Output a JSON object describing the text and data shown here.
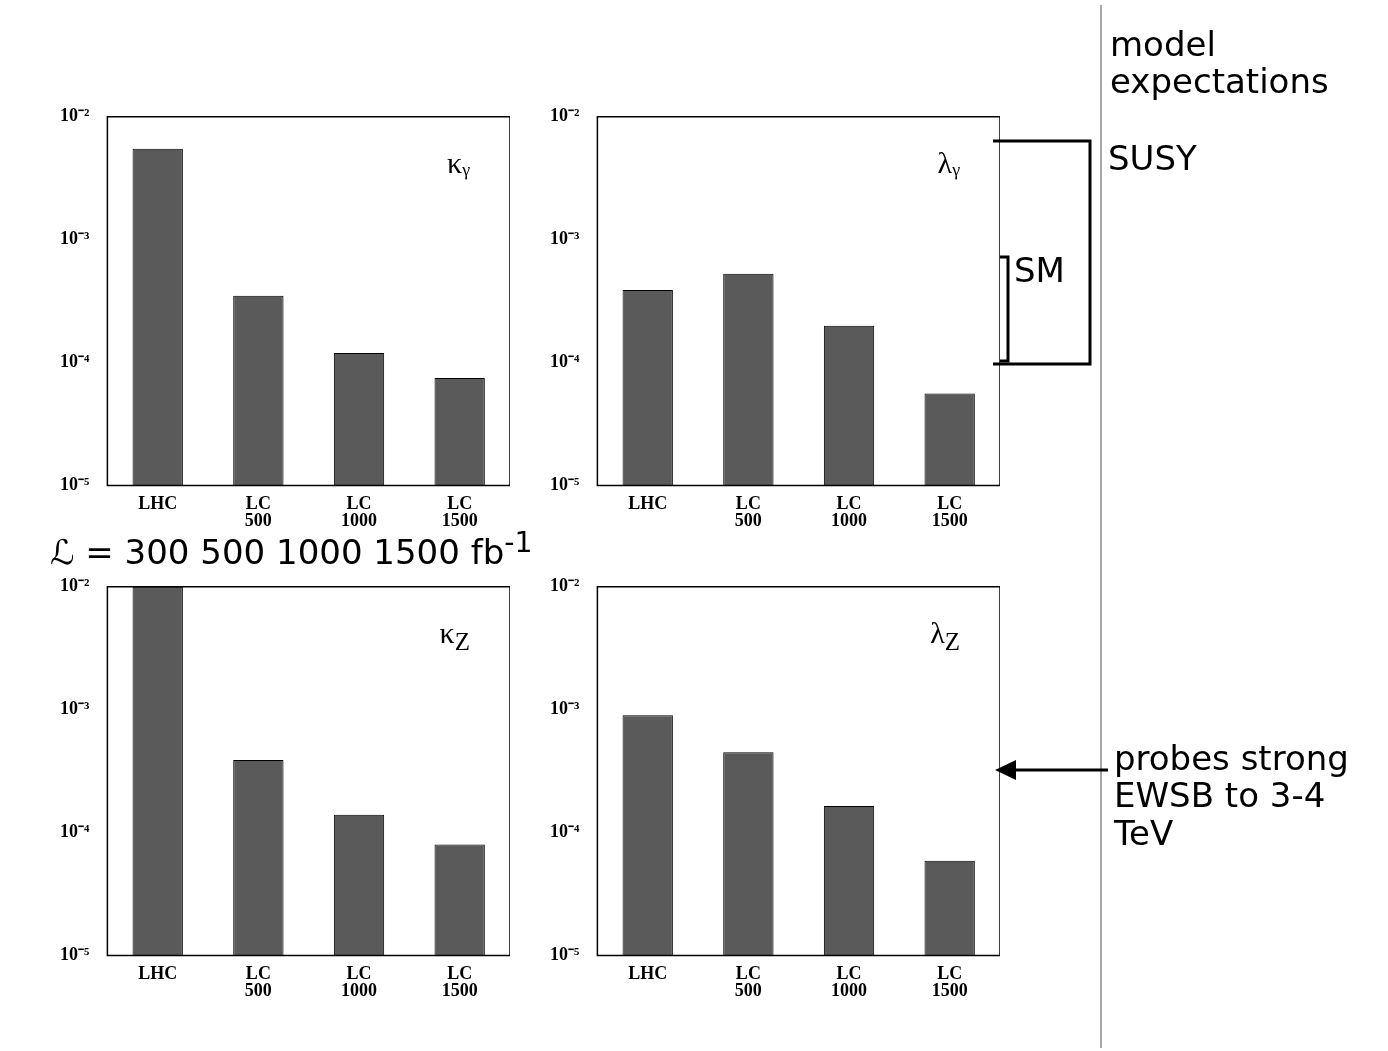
{
  "chart_data": [
    {
      "type": "bar",
      "categories": [
        "LHC",
        "LC 500",
        "LC 1000",
        "LC 1500"
      ],
      "values": [
        0.0055,
        0.00035,
        0.00012,
        7.5e-05
      ],
      "color": "#5a5a5a",
      "log": "y",
      "ylim": [
        1e-05,
        0.01
      ],
      "yticks": [
        {
          "value": 1e-05,
          "label": "10⁻⁵"
        },
        {
          "value": 0.0001,
          "label": "10⁻⁴"
        },
        {
          "value": 0.001,
          "label": "10⁻³"
        },
        {
          "value": 0.01,
          "label": "10⁻²"
        }
      ],
      "annotations": [
        "κᵧ",
        "ℒ =  300   500   1000  1500 fb$^{-1}$"
      ]
    },
    {
      "type": "bar",
      "categories": [
        "LHC",
        "LC 500",
        "LC 1000",
        "LC 1500"
      ],
      "values": [
        0.00039,
        0.00053,
        0.0002,
        5.6e-05
      ],
      "color": "#5a5a5a",
      "log": "y",
      "ylim": [
        1e-05,
        0.01
      ],
      "yticks": [
        {
          "value": 1e-05,
          "label": "10⁻⁵"
        },
        {
          "value": 0.0001,
          "label": "10⁻⁴"
        },
        {
          "value": 0.001,
          "label": "10⁻³"
        },
        {
          "value": 0.01,
          "label": "10⁻²"
        }
      ],
      "annotations": [
        "λᵧ",
        "model expectations",
        "SUSY",
        "SM"
      ]
    },
    {
      "type": "bar",
      "categories": [
        "LHC",
        "LC 500",
        "LC 1000",
        "LC 1500"
      ],
      "values": [
        0.01,
        0.00039,
        0.00014,
        8e-05
      ],
      "color": "#5a5a5a",
      "log": "y",
      "ylim": [
        1e-05,
        0.01
      ],
      "yticks": [
        {
          "value": 1e-05,
          "label": "10⁻⁵"
        },
        {
          "value": 0.0001,
          "label": "10⁻⁴"
        },
        {
          "value": 0.001,
          "label": "10⁻³"
        },
        {
          "value": 0.01,
          "label": "10⁻²"
        }
      ],
      "annotations": [
        "κ$_{Z}$"
      ]
    },
    {
      "type": "bar",
      "categories": [
        "LHC",
        "LC 500",
        "LC 1000",
        "LC 1500"
      ],
      "values": [
        0.0009,
        0.00045,
        0.000165,
        5.9e-05
      ],
      "color": "#5a5a5a",
      "log": "y",
      "ylim": [
        1e-05,
        0.01
      ],
      "yticks": [
        {
          "value": 1e-05,
          "label": "10⁻⁵"
        },
        {
          "value": 0.0001,
          "label": "10⁻⁴"
        },
        {
          "value": 0.001,
          "label": "10⁻³"
        },
        {
          "value": 0.01,
          "label": "10⁻²"
        }
      ],
      "annotations": [
        "λ$_{Z}$",
        "probes strong EWSB to 3-4 TeV"
      ]
    }
  ]
}
